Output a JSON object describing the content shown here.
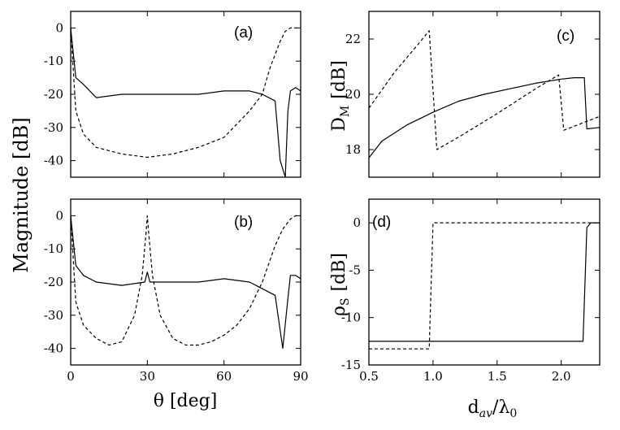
{
  "chart_data": [
    {
      "panel": "(a)",
      "type": "line",
      "ylabel": "Magnitude [dB]",
      "xlim": [
        0,
        90
      ],
      "ylim": [
        -45,
        5
      ],
      "xticks": [
        "0",
        "30",
        "60",
        "90"
      ],
      "yticks": [
        "0",
        "-10",
        "-20",
        "-30",
        "-40"
      ],
      "series": [
        {
          "style": "solid",
          "x": [
            0,
            2,
            5,
            10,
            20,
            30,
            40,
            50,
            60,
            70,
            75,
            80,
            82,
            84,
            85,
            86,
            88,
            90
          ],
          "y": [
            0,
            -15,
            -17,
            -21,
            -20,
            -20,
            -20,
            -20,
            -19,
            -19,
            -20,
            -22,
            -40,
            -45,
            -25,
            -19,
            -18,
            -19
          ]
        },
        {
          "style": "dashed",
          "x": [
            0,
            2,
            5,
            10,
            20,
            30,
            40,
            50,
            60,
            70,
            75,
            78,
            80,
            82,
            84,
            86,
            88,
            90
          ],
          "y": [
            0,
            -25,
            -32,
            -36,
            -38,
            -39,
            -38,
            -36,
            -33,
            -25,
            -20,
            -12,
            -8,
            -4,
            -1,
            0,
            0,
            0
          ]
        }
      ]
    },
    {
      "panel": "(b)",
      "type": "line",
      "xlabel": "θ  [deg]",
      "xlim": [
        0,
        90
      ],
      "ylim": [
        -45,
        5
      ],
      "xticks": [
        "0",
        "30",
        "60",
        "90"
      ],
      "yticks": [
        "0",
        "-10",
        "-20",
        "-30",
        "-40"
      ],
      "series": [
        {
          "style": "solid",
          "x": [
            0,
            2,
            5,
            10,
            20,
            29,
            30,
            31,
            40,
            50,
            60,
            70,
            75,
            80,
            83,
            85,
            86,
            88,
            90
          ],
          "y": [
            0,
            -15,
            -18,
            -20,
            -21,
            -20,
            -17,
            -20,
            -20,
            -20,
            -19,
            -20,
            -22,
            -24,
            -40,
            -25,
            -18,
            -18,
            -19
          ]
        },
        {
          "style": "dashed",
          "x": [
            0,
            2,
            5,
            10,
            15,
            20,
            25,
            28,
            29.5,
            30,
            30.5,
            32,
            35,
            40,
            45,
            50,
            55,
            60,
            65,
            70,
            75,
            80,
            83,
            86,
            88,
            90
          ],
          "y": [
            0,
            -26,
            -33,
            -37,
            -39,
            -38,
            -30,
            -18,
            -5,
            0,
            -5,
            -18,
            -30,
            -37,
            -39,
            -39,
            -38,
            -36,
            -33,
            -28,
            -20,
            -9,
            -4,
            -1,
            0,
            0
          ]
        }
      ]
    },
    {
      "panel": "(c)",
      "type": "line",
      "ylabel": "D_M [dB]",
      "xlim": [
        0.5,
        2.3
      ],
      "ylim": [
        17,
        23
      ],
      "yticks": [
        "18",
        "20",
        "22"
      ],
      "series": [
        {
          "style": "solid",
          "x": [
            0.5,
            0.6,
            0.8,
            1.0,
            1.2,
            1.4,
            1.6,
            1.8,
            2.0,
            2.1,
            2.18,
            2.2,
            2.3
          ],
          "y": [
            17.7,
            18.3,
            18.9,
            19.35,
            19.75,
            20.0,
            20.2,
            20.4,
            20.55,
            20.6,
            20.6,
            18.75,
            18.8
          ]
        },
        {
          "style": "dashed",
          "x": [
            0.5,
            0.7,
            0.9,
            0.97,
            1.03,
            1.2,
            1.5,
            1.8,
            1.98,
            2.02,
            2.3
          ],
          "y": [
            19.5,
            20.8,
            21.9,
            22.3,
            18.0,
            18.45,
            19.3,
            20.2,
            20.7,
            18.7,
            19.2
          ]
        }
      ]
    },
    {
      "panel": "(d)",
      "type": "line",
      "ylabel": "ρ_S [dB]",
      "xlabel": "d_av/λ_0",
      "xlim": [
        0.5,
        2.3
      ],
      "ylim": [
        -15,
        2.5
      ],
      "xticks": [
        "0.5",
        "1.0",
        "1.5",
        "2.0"
      ],
      "yticks": [
        "0",
        "-5",
        "-10",
        "-15"
      ],
      "series": [
        {
          "style": "solid",
          "x": [
            0.5,
            2.17,
            2.2,
            2.23,
            2.3
          ],
          "y": [
            -12.5,
            -12.5,
            -0.5,
            0,
            0
          ]
        },
        {
          "style": "dashed",
          "x": [
            0.5,
            0.97,
            1.0,
            2.3
          ],
          "y": [
            -13.3,
            -13.3,
            0,
            0
          ]
        }
      ]
    }
  ],
  "labels": {
    "panel_a": "(a)",
    "panel_b": "(b)",
    "panel_c": "(c)",
    "panel_d": "(d)",
    "left_ylabel": "Magnitude [dB]",
    "c_ylabel_main": "D",
    "c_ylabel_sub": "M",
    "c_ylabel_unit": "[dB]",
    "d_ylabel_main": "ρ",
    "d_ylabel_sub": "S",
    "d_ylabel_unit": "[dB]",
    "left_xlabel": "θ  [deg]",
    "right_xlabel_d": "d",
    "right_xlabel_av": "av",
    "right_xlabel_slash": "/λ",
    "right_xlabel_0": "0"
  }
}
